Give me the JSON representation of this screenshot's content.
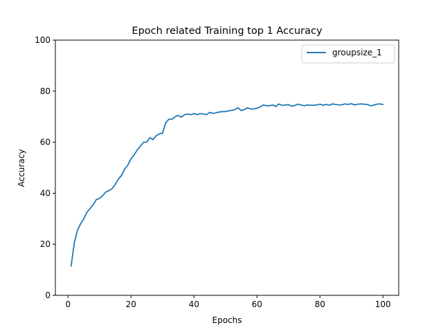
{
  "chart_data": {
    "type": "line",
    "title": "Epoch related Training top 1 Accuracy",
    "xlabel": "Epochs",
    "ylabel": "Accuracy",
    "xlim": [
      -4,
      105
    ],
    "ylim": [
      0,
      100
    ],
    "xticks": [
      0,
      20,
      40,
      60,
      80,
      100
    ],
    "yticks": [
      0,
      20,
      40,
      60,
      80,
      100
    ],
    "grid": false,
    "legend_position": "top-right",
    "series": [
      {
        "name": "groupsize_1",
        "color": "#1f77b4",
        "x": [
          1,
          2,
          3,
          4,
          5,
          6,
          7,
          8,
          9,
          10,
          11,
          12,
          13,
          14,
          15,
          16,
          17,
          18,
          19,
          20,
          21,
          22,
          23,
          24,
          25,
          26,
          27,
          28,
          29,
          30,
          31,
          32,
          33,
          34,
          35,
          36,
          37,
          38,
          39,
          40,
          41,
          42,
          43,
          44,
          45,
          46,
          47,
          48,
          49,
          50,
          51,
          52,
          53,
          54,
          55,
          56,
          57,
          58,
          59,
          60,
          61,
          62,
          63,
          64,
          65,
          66,
          67,
          68,
          69,
          70,
          71,
          72,
          73,
          74,
          75,
          76,
          77,
          78,
          79,
          80,
          81,
          82,
          83,
          84,
          85,
          86,
          87,
          88,
          89,
          90,
          91,
          92,
          93,
          94,
          95,
          96,
          97,
          98,
          99,
          100
        ],
        "y": [
          11.5,
          20.5,
          25.5,
          28,
          30,
          32.5,
          34,
          35.5,
          37.5,
          38,
          39,
          40.5,
          41,
          41.8,
          43.5,
          45.5,
          47,
          49.5,
          51,
          53.5,
          55,
          57,
          58.5,
          60,
          60,
          61.8,
          61,
          62.5,
          63.3,
          63.5,
          67.5,
          69,
          69,
          70,
          70.5,
          69.8,
          70.8,
          71,
          70.8,
          71.2,
          70.8,
          71.2,
          71,
          70.8,
          71.7,
          71.3,
          71.5,
          71.8,
          72,
          72,
          72.3,
          72.5,
          72.8,
          73.5,
          72.4,
          72.8,
          73.5,
          73,
          73,
          73.3,
          73.8,
          74.6,
          74.3,
          74.3,
          74.6,
          74,
          75,
          74.4,
          74.6,
          74.7,
          74.1,
          74.4,
          74.9,
          74.6,
          74.3,
          74.6,
          74.5,
          74.5,
          74.6,
          74.9,
          74.5,
          74.8,
          74.5,
          75,
          74.8,
          74.6,
          74.7,
          75,
          74.8,
          75.1,
          74.6,
          74.9,
          75,
          74.9,
          74.8,
          74.3,
          74.5,
          74.9,
          75,
          74.8
        ]
      }
    ]
  }
}
